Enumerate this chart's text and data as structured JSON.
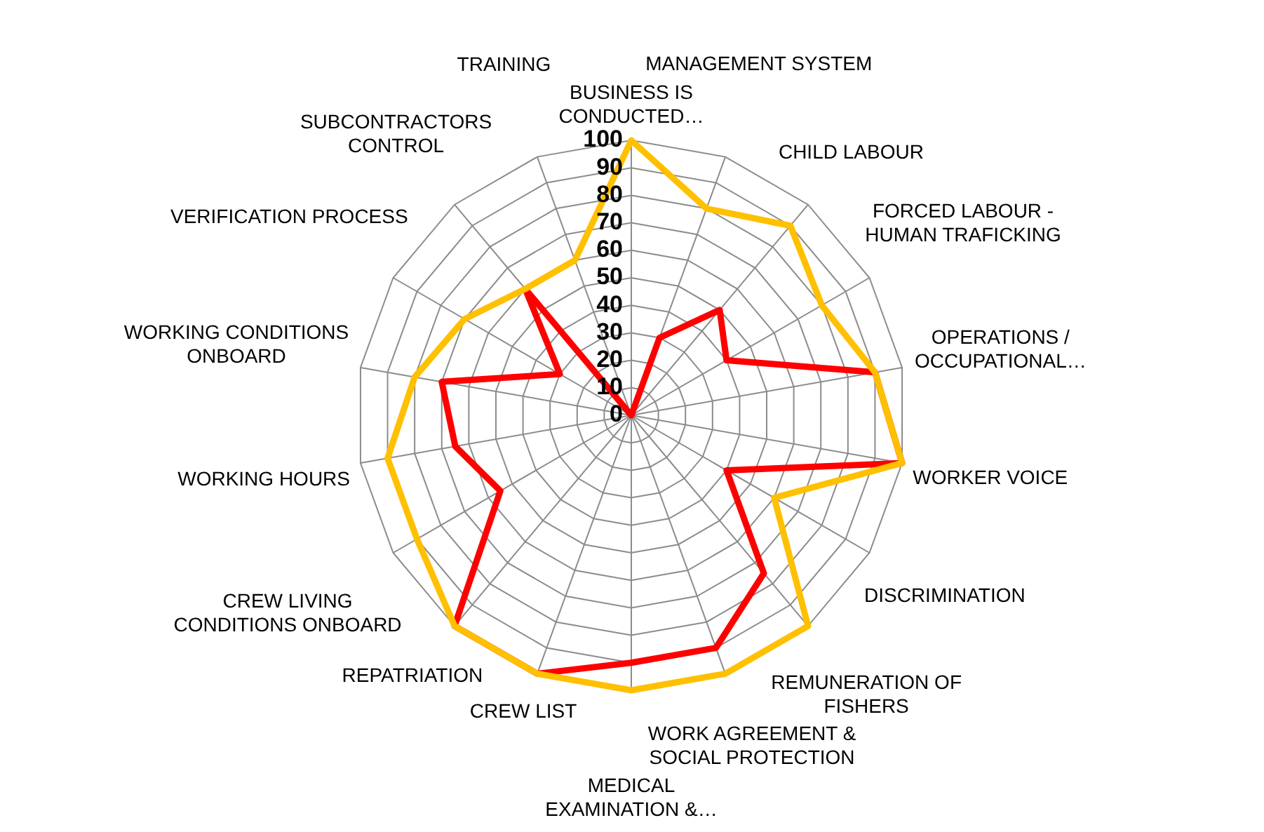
{
  "chart_data": {
    "type": "radar",
    "categories": [
      "BUSINESS IS\nCONDUCTED…",
      "MANAGEMENT SYSTEM",
      "CHILD LABOUR",
      "FORCED LABOUR -\nHUMAN TRAFICKING",
      "OPERATIONS /\nOCCUPATIONAL…",
      "WORKER VOICE",
      "DISCRIMINATION",
      "REMUNERATION OF\nFISHERS",
      "WORK AGREEMENT &\nSOCIAL PROTECTION",
      "MEDICAL\nEXAMINATION &…",
      "CREW LIST",
      "REPATRIATION",
      "CREW LIVING\nCONDITIONS ONBOARD",
      "WORKING HOURS",
      "WORKING CONDITIONS\nONBOARD",
      "VERIFICATION PROCESS",
      "SUBCONTRACTORS\nCONTROL",
      "TRAINING"
    ],
    "series": [
      {
        "color": "#ffc000",
        "values": [
          100,
          80,
          90,
          80,
          90,
          100,
          60,
          100,
          100,
          100,
          100,
          100,
          90,
          90,
          80,
          70,
          60,
          60
        ]
      },
      {
        "color": "#ff0000",
        "values": [
          0,
          30,
          50,
          40,
          90,
          100,
          40,
          75,
          90,
          90,
          100,
          100,
          55,
          65,
          70,
          30,
          60,
          0
        ]
      }
    ],
    "ylim": [
      0,
      100
    ],
    "yticks": [
      0,
      10,
      20,
      30,
      40,
      50,
      60,
      70,
      80,
      90,
      100
    ],
    "grid": true,
    "marker": "none"
  }
}
